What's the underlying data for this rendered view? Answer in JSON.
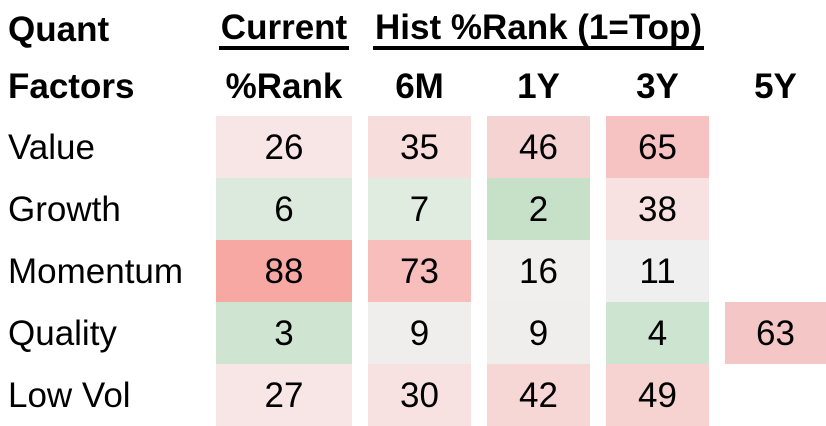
{
  "header": {
    "row_group_title_line1": "Quant",
    "row_group_title_line2": "Factors",
    "current_group_label": "Current",
    "hist_group_label": "Hist %Rank (1=Top)",
    "current_sub_label": "%Rank",
    "period_labels": [
      "6M",
      "1Y",
      "3Y",
      "5Y"
    ]
  },
  "rows": [
    {
      "label": "Value",
      "cells": [
        {
          "value": "26",
          "bg": "#f8e6e6"
        },
        {
          "value": "35",
          "bg": "#f7dedd"
        },
        {
          "value": "46",
          "bg": "#f6d3d3"
        },
        {
          "value": "65",
          "bg": "#f7c3c2"
        },
        {
          "value": "",
          "bg": ""
        }
      ]
    },
    {
      "label": "Growth",
      "cells": [
        {
          "value": "6",
          "bg": "#dceade"
        },
        {
          "value": "7",
          "bg": "#e0ecdf"
        },
        {
          "value": "2",
          "bg": "#c7e1c9"
        },
        {
          "value": "38",
          "bg": "#f8e1e1"
        },
        {
          "value": "",
          "bg": ""
        }
      ]
    },
    {
      "label": "Momentum",
      "cells": [
        {
          "value": "88",
          "bg": "#f8a8a3"
        },
        {
          "value": "73",
          "bg": "#f8bebb"
        },
        {
          "value": "16",
          "bg": "#f1eeee"
        },
        {
          "value": "11",
          "bg": "#f0efef"
        },
        {
          "value": "",
          "bg": ""
        }
      ]
    },
    {
      "label": "Quality",
      "cells": [
        {
          "value": "3",
          "bg": "#cfe5d1"
        },
        {
          "value": "9",
          "bg": "#f0eeed"
        },
        {
          "value": "9",
          "bg": "#f0eeed"
        },
        {
          "value": "4",
          "bg": "#cde4d0"
        },
        {
          "value": "63",
          "bg": "#f5c6c6"
        }
      ]
    },
    {
      "label": "Low Vol",
      "cells": [
        {
          "value": "27",
          "bg": "#f8e5e5"
        },
        {
          "value": "30",
          "bg": "#f7e2e1"
        },
        {
          "value": "42",
          "bg": "#f7d7d6"
        },
        {
          "value": "49",
          "bg": "#f6d2d1"
        },
        {
          "value": "",
          "bg": ""
        }
      ]
    }
  ],
  "colors": {
    "rank_low_green": "#c7e1c9",
    "rank_mid_neutral": "#f0efef",
    "rank_high_red": "#f8a8a3",
    "text": "#000000",
    "background": "#ffffff"
  },
  "chart_data": {
    "type": "heatmap",
    "title": "Quant Factors",
    "columns": [
      "Current %Rank",
      "6M",
      "1Y",
      "3Y",
      "5Y"
    ],
    "rows": [
      "Value",
      "Growth",
      "Momentum",
      "Quality",
      "Low Vol"
    ],
    "values": [
      [
        26,
        35,
        46,
        65,
        null
      ],
      [
        6,
        7,
        2,
        38,
        null
      ],
      [
        88,
        73,
        16,
        11,
        null
      ],
      [
        3,
        9,
        9,
        4,
        63
      ],
      [
        27,
        30,
        42,
        49,
        null
      ]
    ],
    "scale_note": "Hist %Rank (1=Top)",
    "color_scale": {
      "low": "green (rank near 1 = top)",
      "mid": "white/neutral",
      "high": "red (rank near 100)"
    },
    "value_range": [
      1,
      100
    ]
  }
}
